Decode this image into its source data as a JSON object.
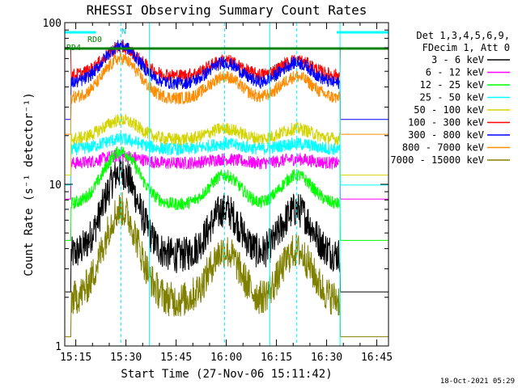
{
  "chart_data": {
    "type": "line",
    "title": "RHESSI Observing Summary Count Rates",
    "xlabel": "Start Time (27-Nov-06 15:11:42)",
    "ylabel": "Count Rate (s⁻¹ detector⁻¹)",
    "y_scale": "log",
    "ylim": [
      1,
      100
    ],
    "xlim_minutes": [
      11.7,
      108.5
    ],
    "x_ticks": [
      {
        "label": "15:15",
        "minute": 15
      },
      {
        "label": "15:30",
        "minute": 30
      },
      {
        "label": "15:45",
        "minute": 45
      },
      {
        "label": "16:00",
        "minute": 60
      },
      {
        "label": "16:15",
        "minute": 75
      },
      {
        "label": "16:30",
        "minute": 90
      },
      {
        "label": "16:45",
        "minute": 105
      }
    ],
    "y_ticks": [
      {
        "label": "1",
        "value": 1
      },
      {
        "label": "10",
        "value": 10
      },
      {
        "label": "100",
        "value": 100
      }
    ],
    "legend_header": [
      "Det 1,3,4,5,6,9,",
      "FDecim 1, Att 0"
    ],
    "legend_position": "right",
    "series": [
      {
        "name": "3 - 6 keV",
        "color": "#000000",
        "base": 3.6,
        "peak": 12.0,
        "hi_flag": false
      },
      {
        "name": "6 - 12 keV",
        "color": "#ff00ff",
        "base": 13.5,
        "peak": 15.0,
        "hi_flag": false
      },
      {
        "name": "12 - 25 keV",
        "color": "#00ff00",
        "base": 7.5,
        "peak": 16.0,
        "hi_flag": false
      },
      {
        "name": "25 - 50 keV",
        "color": "#00ffff",
        "base": 16.5,
        "peak": 19.0,
        "hi_flag": false
      },
      {
        "name": "50 - 100 keV",
        "color": "#d4d400",
        "base": 19.0,
        "peak": 25.0,
        "hi_flag": false
      },
      {
        "name": "100 - 300 keV",
        "color": "#ff0000",
        "base": 47.0,
        "peak": 70.0,
        "hi_flag": true
      },
      {
        "name": "300 - 800 keV",
        "color": "#0000ff",
        "base": 42.0,
        "peak": 72.0,
        "hi_flag": false
      },
      {
        "name": "800 - 7000 keV",
        "color": "#ff8c00",
        "base": 34.0,
        "peak": 60.0,
        "hi_flag": false
      },
      {
        "name": "7000 - 15000 keV",
        "color": "#808000",
        "base": 1.9,
        "peak": 7.0,
        "hi_flag": false
      }
    ],
    "orbit_peaks_minutes": [
      28.5,
      59.5,
      81.0
    ],
    "saa_intervals_minutes": [
      [
        11.7,
        13.5
      ],
      [
        94.0,
        108.5
      ]
    ],
    "night_boundaries_minutes": [
      37.0,
      73.0,
      94.0
    ],
    "rd_labels": [
      "RD0",
      "RD4"
    ],
    "n_label": "N",
    "timestamp": "18-Oct-2021 05:29"
  }
}
